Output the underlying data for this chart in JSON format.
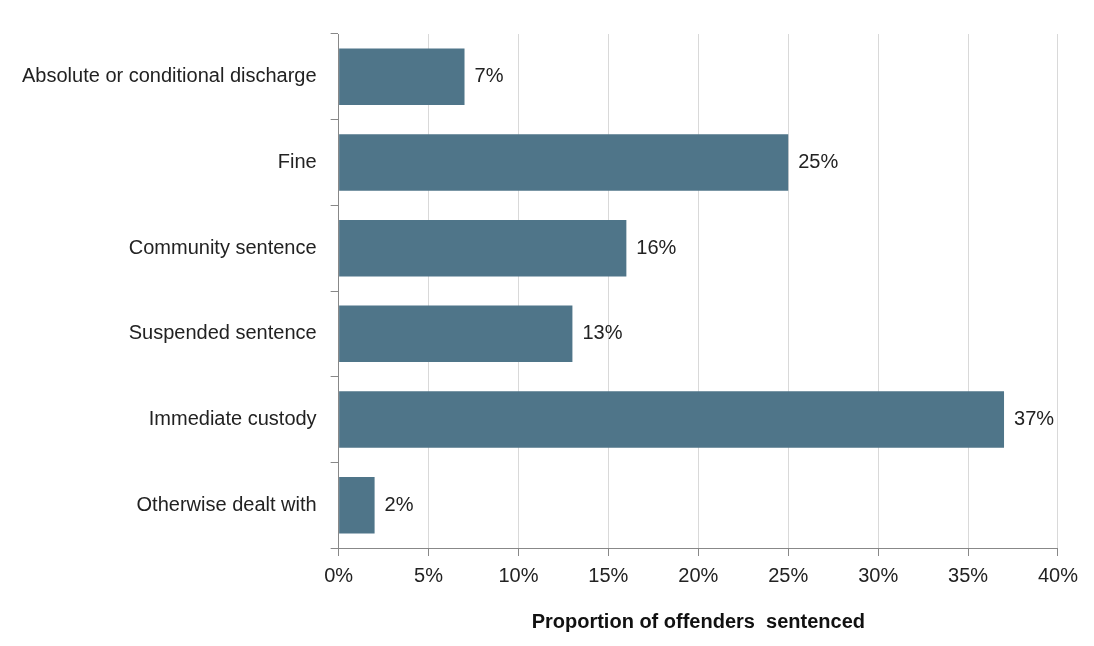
{
  "chart_data": {
    "type": "bar",
    "orientation": "horizontal",
    "xlabel": "Proportion of offenders  sentenced",
    "categories": [
      "Absolute or conditional discharge",
      "Fine",
      "Community sentence",
      "Suspended sentence",
      "Immediate custody",
      "Otherwise dealt with"
    ],
    "values": [
      7,
      25,
      16,
      13,
      37,
      2
    ],
    "value_labels": [
      "7%",
      "25%",
      "16%",
      "13%",
      "37%",
      "2%"
    ],
    "color": "#4f7589",
    "xlim": [
      0,
      40
    ],
    "xticks": [
      {
        "value": 0,
        "label": "0%"
      },
      {
        "value": 5,
        "label": "5%"
      },
      {
        "value": 10,
        "label": "10%"
      },
      {
        "value": 15,
        "label": "15%"
      },
      {
        "value": 20,
        "label": "20%"
      },
      {
        "value": 25,
        "label": "25%"
      },
      {
        "value": 30,
        "label": "30%"
      },
      {
        "value": 35,
        "label": "35%"
      },
      {
        "value": 40,
        "label": "40%"
      }
    ],
    "grid": "x",
    "legend": false
  }
}
